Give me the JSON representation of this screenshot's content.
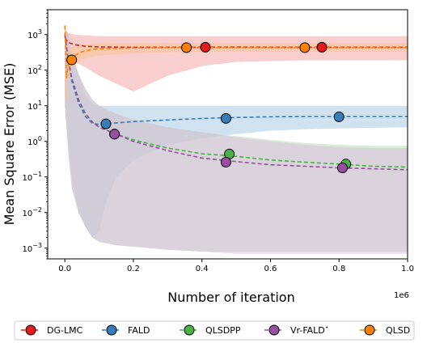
{
  "chart_data": {
    "type": "line",
    "xlabel": "Number of iteration",
    "ylabel": "Mean Square Error (MSE)",
    "x_offset_text": "1e6",
    "xlim": [
      -0.05,
      1.0
    ],
    "ylim": [
      0.0005,
      5000
    ],
    "yscale": "log",
    "x_ticks": [
      {
        "value": 0.0,
        "label": "0.0"
      },
      {
        "value": 0.2,
        "label": "0.2"
      },
      {
        "value": 0.4,
        "label": "0.4"
      },
      {
        "value": 0.6,
        "label": "0.6"
      },
      {
        "value": 0.8,
        "label": "0.8"
      },
      {
        "value": 1.0,
        "label": "1.0"
      }
    ],
    "y_ticks": [
      {
        "value": 0.001,
        "base": "10",
        "exp": "−3"
      },
      {
        "value": 0.01,
        "base": "10",
        "exp": "−2"
      },
      {
        "value": 0.1,
        "base": "10",
        "exp": "−1"
      },
      {
        "value": 1,
        "base": "10",
        "exp": "0"
      },
      {
        "value": 10,
        "base": "10",
        "exp": "1"
      },
      {
        "value": 100,
        "base": "10",
        "exp": "2"
      },
      {
        "value": 1000,
        "base": "10",
        "exp": "3"
      }
    ],
    "grid": false,
    "legend_position": "bottom",
    "series": [
      {
        "name": "DG-LMC",
        "color": "#e41a1c",
        "band_color": "#f4a5a6",
        "x": [
          0.0,
          0.01,
          0.03,
          0.06,
          0.1,
          0.2,
          0.3,
          0.4,
          0.5,
          0.6,
          0.7,
          0.8,
          0.9,
          1.0
        ],
        "values": [
          800,
          600,
          520,
          470,
          450,
          440,
          440,
          440,
          445,
          440,
          440,
          440,
          440,
          440
        ],
        "band_low": [
          20,
          150,
          170,
          120,
          70,
          25,
          70,
          130,
          170,
          180,
          190,
          190,
          190,
          190
        ],
        "band_high": [
          1500,
          1100,
          1000,
          950,
          900,
          900,
          900,
          900,
          900,
          900,
          900,
          900,
          900,
          900
        ],
        "markers": [
          [
            0.41,
            440
          ],
          [
            0.75,
            440
          ]
        ]
      },
      {
        "name": "FALD",
        "color": "#377eb8",
        "band_color": "#a9c8e4",
        "x": [
          0.0,
          0.01,
          0.02,
          0.04,
          0.06,
          0.08,
          0.1,
          0.12,
          0.15,
          0.2,
          0.3,
          0.4,
          0.5,
          0.6,
          0.7,
          0.8,
          0.9,
          1.0
        ],
        "values": [
          1000,
          200,
          50,
          12,
          5,
          3.2,
          3.0,
          3.2,
          3.3,
          3.6,
          4.0,
          4.4,
          4.7,
          4.9,
          5.0,
          5.0,
          5.0,
          5.0
        ],
        "band_low": [
          10,
          0.8,
          0.1,
          0.01,
          0.004,
          0.002,
          0.003,
          0.02,
          0.1,
          0.3,
          0.8,
          1.2,
          1.6,
          2.0,
          2.2,
          2.3,
          2.4,
          2.5
        ],
        "band_high": [
          1500,
          1000,
          300,
          70,
          20,
          11,
          10,
          10,
          10,
          10,
          10,
          10,
          10,
          10,
          10,
          10,
          10,
          10
        ],
        "markers": [
          [
            0.12,
            3.1
          ],
          [
            0.47,
            4.4
          ],
          [
            0.8,
            4.9
          ]
        ]
      },
      {
        "name": "QLSDPP",
        "color": "#4daf4a",
        "band_color": "#b7dfb3",
        "x": [
          0.0,
          0.01,
          0.02,
          0.04,
          0.06,
          0.08,
          0.1,
          0.15,
          0.2,
          0.3,
          0.4,
          0.5,
          0.6,
          0.7,
          0.8,
          0.9,
          1.0
        ],
        "values": [
          1000,
          200,
          60,
          15,
          6,
          3.5,
          2.5,
          1.6,
          1.1,
          0.65,
          0.45,
          0.38,
          0.3,
          0.26,
          0.23,
          0.2,
          0.19
        ],
        "band_low": [
          10,
          0.5,
          0.05,
          0.01,
          0.004,
          0.002,
          0.0015,
          0.0012,
          0.0011,
          0.0009,
          0.0008,
          0.0008,
          0.0008,
          0.0008,
          0.0008,
          0.0008,
          0.0008
        ],
        "band_high": [
          1500,
          1000,
          300,
          80,
          30,
          15,
          10,
          6,
          4,
          2.5,
          1.8,
          1.4,
          1.1,
          0.9,
          0.8,
          0.75,
          0.75
        ],
        "markers": [
          [
            0.145,
            1.6
          ],
          [
            0.48,
            0.44
          ],
          [
            0.82,
            0.23
          ]
        ]
      },
      {
        "name": "Vr-FALD",
        "name_superscript": "⋆",
        "color": "#984ea3",
        "band_color": "#dcbde1",
        "x": [
          0.0,
          0.01,
          0.02,
          0.04,
          0.06,
          0.08,
          0.1,
          0.15,
          0.2,
          0.3,
          0.4,
          0.5,
          0.6,
          0.7,
          0.8,
          0.9,
          1.0
        ],
        "values": [
          1000,
          200,
          60,
          15,
          6,
          3.5,
          2.5,
          1.6,
          1.0,
          0.55,
          0.34,
          0.27,
          0.22,
          0.2,
          0.18,
          0.17,
          0.16
        ],
        "band_low": [
          10,
          0.5,
          0.05,
          0.01,
          0.004,
          0.002,
          0.0015,
          0.0012,
          0.0011,
          0.0009,
          0.0008,
          0.0007,
          0.0007,
          0.0007,
          0.0007,
          0.0007,
          0.0007
        ],
        "band_high": [
          1500,
          1000,
          300,
          80,
          30,
          15,
          10,
          6,
          4,
          2.5,
          1.8,
          1.3,
          1.0,
          0.8,
          0.7,
          0.65,
          0.65
        ],
        "markers": [
          [
            0.145,
            1.6
          ],
          [
            0.47,
            0.26
          ],
          [
            0.81,
            0.18
          ]
        ]
      },
      {
        "name": "QLSD",
        "color": "#ff7f00",
        "band_color": "#f7c592",
        "x": [
          0.0,
          0.005,
          0.01,
          0.02,
          0.03,
          0.05,
          0.08,
          0.1,
          0.2,
          0.3,
          0.4,
          0.5,
          0.6,
          0.7,
          0.8,
          0.9,
          1.0
        ],
        "values": [
          1800,
          60,
          150,
          200,
          260,
          330,
          380,
          400,
          420,
          430,
          430,
          430,
          430,
          430,
          430,
          430,
          430
        ],
        "band_low": [
          15,
          10,
          60,
          100,
          140,
          200,
          240,
          260,
          300,
          320,
          330,
          330,
          330,
          330,
          330,
          330,
          330
        ],
        "band_high": [
          2000,
          1000,
          400,
          450,
          480,
          520,
          540,
          560,
          580,
          580,
          580,
          580,
          580,
          580,
          580,
          580,
          580
        ],
        "markers": [
          [
            0.02,
            195
          ],
          [
            0.355,
            430
          ],
          [
            0.7,
            430
          ]
        ]
      }
    ]
  }
}
